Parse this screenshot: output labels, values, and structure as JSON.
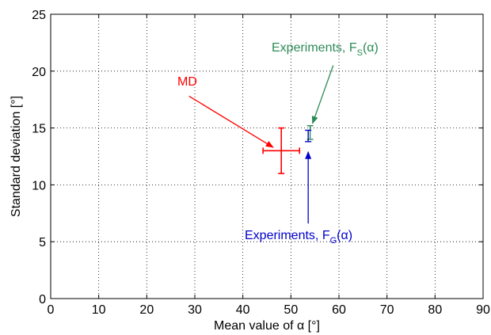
{
  "chart_data": {
    "type": "scatter",
    "title": "",
    "xlabel": "Mean value of α [°]",
    "ylabel": "Standard deviation [°]",
    "xlim": [
      0,
      90
    ],
    "ylim": [
      0,
      25
    ],
    "xticks": [
      0,
      10,
      20,
      30,
      40,
      50,
      60,
      70,
      80,
      90
    ],
    "yticks": [
      0,
      5,
      10,
      15,
      20,
      25
    ],
    "x_tick_labels": [
      "0",
      "10",
      "20",
      "30",
      "40",
      "50",
      "60",
      "70",
      "80",
      "90"
    ],
    "y_tick_labels": [
      "0",
      "5",
      "10",
      "15",
      "20",
      "25"
    ],
    "grid": true,
    "legend": "none",
    "series": [
      {
        "name": "MD",
        "color": "#ff0000",
        "points": [
          {
            "x": 48,
            "y": 13,
            "x_err": 3.8,
            "y_err": 2
          }
        ]
      },
      {
        "name": "Experiments, F_S(α)",
        "color": "#2e8b57",
        "points": [
          {
            "x": 54,
            "y": 14.6,
            "x_err": 0,
            "y_err": 0.6
          }
        ]
      },
      {
        "name": "Experiments, F_G(α)",
        "color": "#0000cc",
        "points": [
          {
            "x": 53.6,
            "y": 14.3,
            "x_err": 0,
            "y_err": 0.5
          }
        ]
      }
    ],
    "annotations": [
      {
        "text": "MD",
        "series": 0,
        "color": "#ff0000",
        "label_anchor": [
          25.5,
          18.5
        ],
        "arrow_from": [
          28.8,
          17.8
        ],
        "arrow_to": [
          46.3,
          13.3
        ]
      },
      {
        "text_main": "Experiments, F",
        "text_sub": "S",
        "text_tail": "(α)",
        "series": 1,
        "color": "#2e8b57",
        "label_anchor": [
          43,
          22
        ],
        "arrow_from": [
          58.8,
          20.5
        ],
        "arrow_to": [
          54.5,
          15.4
        ]
      },
      {
        "text_main": "Experiments, F",
        "text_sub": "G",
        "text_tail": "(α)",
        "series": 2,
        "color": "#0000cc",
        "label_anchor": [
          37,
          5
        ],
        "arrow_from": [
          53.6,
          6.6
        ],
        "arrow_to": [
          53.6,
          12.9
        ]
      }
    ]
  }
}
